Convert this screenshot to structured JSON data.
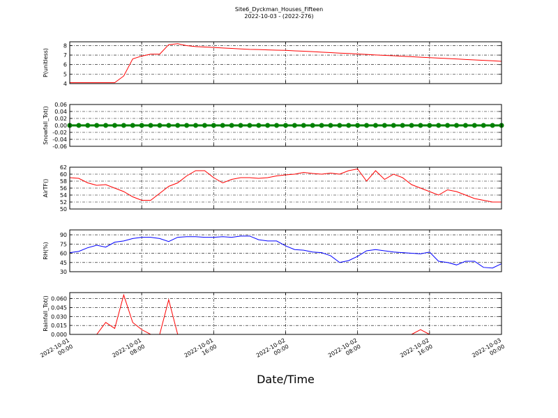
{
  "chart_data": [
    {
      "type": "line",
      "title": "Site6_Dyckman_Houses_Fifteen",
      "subtitle": "2022-10-03 - (2022-276)",
      "ylabel": "P(unitless)",
      "color": "#ff0000",
      "marker": false,
      "grid": true,
      "xlim": [
        "2022-10-01 00:00",
        "2022-10-03 00:00"
      ],
      "xticks": [
        "2022-10-01 00:00",
        "2022-10-01 08:00",
        "2022-10-01 16:00",
        "2022-10-02 00:00",
        "2022-10-02 08:00",
        "2022-10-02 16:00",
        "2022-10-03 00:00"
      ],
      "ylim": [
        4,
        8.4
      ],
      "yticks": [
        4,
        5,
        6,
        7,
        8
      ],
      "x": [
        "2022-10-01 00:00",
        "2022-10-01 01:00",
        "2022-10-01 02:00",
        "2022-10-01 03:00",
        "2022-10-01 04:00",
        "2022-10-01 05:00",
        "2022-10-01 06:00",
        "2022-10-01 07:00",
        "2022-10-01 08:00",
        "2022-10-01 09:00",
        "2022-10-01 10:00",
        "2022-10-01 11:00",
        "2022-10-01 12:00",
        "2022-10-01 13:00",
        "2022-10-01 14:00",
        "2022-10-01 15:00",
        "2022-10-01 16:00",
        "2022-10-01 17:00",
        "2022-10-01 18:00",
        "2022-10-01 19:00",
        "2022-10-01 20:00",
        "2022-10-01 21:00",
        "2022-10-01 22:00",
        "2022-10-01 23:00",
        "2022-10-02 00:00",
        "2022-10-02 01:00",
        "2022-10-02 02:00",
        "2022-10-02 03:00",
        "2022-10-02 04:00",
        "2022-10-02 05:00",
        "2022-10-02 06:00",
        "2022-10-02 07:00",
        "2022-10-02 08:00",
        "2022-10-02 09:00",
        "2022-10-02 10:00",
        "2022-10-02 11:00",
        "2022-10-02 12:00",
        "2022-10-02 13:00",
        "2022-10-02 14:00",
        "2022-10-02 15:00",
        "2022-10-02 16:00",
        "2022-10-02 17:00",
        "2022-10-02 18:00",
        "2022-10-02 19:00",
        "2022-10-02 20:00",
        "2022-10-02 21:00",
        "2022-10-02 22:00",
        "2022-10-02 23:00",
        "2022-10-03 00:00"
      ],
      "values": [
        4.1,
        4.1,
        4.1,
        4.1,
        4.1,
        4.1,
        4.8,
        6.6,
        6.9,
        7.1,
        7.1,
        8.1,
        8.2,
        8.0,
        7.9,
        7.85,
        7.8,
        7.75,
        7.7,
        7.65,
        7.6,
        7.58,
        7.55,
        7.52,
        7.5,
        7.45,
        7.41,
        7.36,
        7.31,
        7.26,
        7.21,
        7.17,
        7.12,
        7.07,
        7.02,
        6.97,
        6.93,
        6.88,
        6.83,
        6.78,
        6.73,
        6.69,
        6.64,
        6.59,
        6.54,
        6.49,
        6.45,
        6.4,
        6.35
      ]
    },
    {
      "type": "line",
      "ylabel": "Snowfall_Tot()",
      "color": "#008000",
      "marker": true,
      "grid": true,
      "xlim": [
        "2022-10-01 00:00",
        "2022-10-03 00:00"
      ],
      "xticks": [
        "2022-10-01 00:00",
        "2022-10-01 08:00",
        "2022-10-01 16:00",
        "2022-10-02 00:00",
        "2022-10-02 08:00",
        "2022-10-02 16:00",
        "2022-10-03 00:00"
      ],
      "ylim": [
        -0.06,
        0.06
      ],
      "yticks": [
        -0.06,
        -0.04,
        -0.02,
        {
          "value": 0,
          "label": "0.00"
        },
        0.02,
        0.04,
        0.06
      ],
      "x": [
        "2022-10-01 00:00",
        "2022-10-01 01:00",
        "2022-10-01 02:00",
        "2022-10-01 03:00",
        "2022-10-01 04:00",
        "2022-10-01 05:00",
        "2022-10-01 06:00",
        "2022-10-01 07:00",
        "2022-10-01 08:00",
        "2022-10-01 09:00",
        "2022-10-01 10:00",
        "2022-10-01 11:00",
        "2022-10-01 12:00",
        "2022-10-01 13:00",
        "2022-10-01 14:00",
        "2022-10-01 15:00",
        "2022-10-01 16:00",
        "2022-10-01 17:00",
        "2022-10-01 18:00",
        "2022-10-01 19:00",
        "2022-10-01 20:00",
        "2022-10-01 21:00",
        "2022-10-01 22:00",
        "2022-10-01 23:00",
        "2022-10-02 00:00",
        "2022-10-02 01:00",
        "2022-10-02 02:00",
        "2022-10-02 03:00",
        "2022-10-02 04:00",
        "2022-10-02 05:00",
        "2022-10-02 06:00",
        "2022-10-02 07:00",
        "2022-10-02 08:00",
        "2022-10-02 09:00",
        "2022-10-02 10:00",
        "2022-10-02 11:00",
        "2022-10-02 12:00",
        "2022-10-02 13:00",
        "2022-10-02 14:00",
        "2022-10-02 15:00",
        "2022-10-02 16:00",
        "2022-10-02 17:00",
        "2022-10-02 18:00",
        "2022-10-02 19:00",
        "2022-10-02 20:00",
        "2022-10-02 21:00",
        "2022-10-02 22:00",
        "2022-10-02 23:00",
        "2022-10-03 00:00"
      ],
      "values": [
        0,
        0,
        0,
        0,
        0,
        0,
        0,
        0,
        0,
        0,
        0,
        0,
        0,
        0,
        0,
        0,
        0,
        0,
        0,
        0,
        0,
        0,
        0,
        0,
        0,
        0,
        0,
        0,
        0,
        0,
        0,
        0,
        0,
        0,
        0,
        0,
        0,
        0,
        0,
        0,
        0,
        0,
        0,
        0,
        0,
        0,
        0,
        0,
        0
      ]
    },
    {
      "type": "line",
      "ylabel": "AirTF()",
      "color": "#ff0000",
      "marker": false,
      "grid": true,
      "xlim": [
        "2022-10-01 00:00",
        "2022-10-03 00:00"
      ],
      "xticks": [
        "2022-10-01 00:00",
        "2022-10-01 08:00",
        "2022-10-01 16:00",
        "2022-10-02 00:00",
        "2022-10-02 08:00",
        "2022-10-02 16:00",
        "2022-10-03 00:00"
      ],
      "ylim": [
        50,
        62
      ],
      "yticks": [
        50,
        52,
        54,
        56,
        58,
        60,
        62
      ],
      "x": [
        "2022-10-01 00:00",
        "2022-10-01 01:00",
        "2022-10-01 02:00",
        "2022-10-01 03:00",
        "2022-10-01 04:00",
        "2022-10-01 05:00",
        "2022-10-01 06:00",
        "2022-10-01 07:00",
        "2022-10-01 08:00",
        "2022-10-01 09:00",
        "2022-10-01 10:00",
        "2022-10-01 11:00",
        "2022-10-01 12:00",
        "2022-10-01 13:00",
        "2022-10-01 14:00",
        "2022-10-01 15:00",
        "2022-10-01 16:00",
        "2022-10-01 17:00",
        "2022-10-01 18:00",
        "2022-10-01 19:00",
        "2022-10-01 20:00",
        "2022-10-01 21:00",
        "2022-10-01 22:00",
        "2022-10-01 23:00",
        "2022-10-02 00:00",
        "2022-10-02 01:00",
        "2022-10-02 02:00",
        "2022-10-02 03:00",
        "2022-10-02 04:00",
        "2022-10-02 05:00",
        "2022-10-02 06:00",
        "2022-10-02 07:00",
        "2022-10-02 08:00",
        "2022-10-02 09:00",
        "2022-10-02 10:00",
        "2022-10-02 11:00",
        "2022-10-02 12:00",
        "2022-10-02 13:00",
        "2022-10-02 14:00",
        "2022-10-02 15:00",
        "2022-10-02 16:00",
        "2022-10-02 17:00",
        "2022-10-02 18:00",
        "2022-10-02 19:00",
        "2022-10-02 20:00",
        "2022-10-02 21:00",
        "2022-10-02 22:00",
        "2022-10-02 23:00",
        "2022-10-03 00:00"
      ],
      "values": [
        59,
        58.8,
        57.5,
        56.8,
        57,
        56,
        55,
        53.5,
        52.5,
        52.5,
        54.5,
        56.5,
        57.5,
        59.5,
        61,
        61,
        59,
        57.5,
        58.5,
        59,
        59,
        58.8,
        59,
        59.5,
        59.8,
        60,
        60.5,
        60.2,
        60,
        60.3,
        60,
        61,
        61.5,
        58,
        61,
        58.5,
        60,
        59,
        57,
        56,
        55,
        54,
        55.5,
        55,
        54,
        53,
        52.5,
        52,
        52
      ]
    },
    {
      "type": "line",
      "ylabel": "RH(%)",
      "color": "#0000ff",
      "marker": false,
      "grid": true,
      "xlim": [
        "2022-10-01 00:00",
        "2022-10-03 00:00"
      ],
      "xticks": [
        "2022-10-01 00:00",
        "2022-10-01 08:00",
        "2022-10-01 16:00",
        "2022-10-02 00:00",
        "2022-10-02 08:00",
        "2022-10-02 16:00",
        "2022-10-03 00:00"
      ],
      "ylim": [
        30,
        98
      ],
      "yticks": [
        30,
        45,
        60,
        75,
        90
      ],
      "x": [
        "2022-10-01 00:00",
        "2022-10-01 01:00",
        "2022-10-01 02:00",
        "2022-10-01 03:00",
        "2022-10-01 04:00",
        "2022-10-01 05:00",
        "2022-10-01 06:00",
        "2022-10-01 07:00",
        "2022-10-01 08:00",
        "2022-10-01 09:00",
        "2022-10-01 10:00",
        "2022-10-01 11:00",
        "2022-10-01 12:00",
        "2022-10-01 13:00",
        "2022-10-01 14:00",
        "2022-10-01 15:00",
        "2022-10-01 16:00",
        "2022-10-01 17:00",
        "2022-10-01 18:00",
        "2022-10-01 19:00",
        "2022-10-01 20:00",
        "2022-10-01 21:00",
        "2022-10-01 22:00",
        "2022-10-01 23:00",
        "2022-10-02 00:00",
        "2022-10-02 01:00",
        "2022-10-02 02:00",
        "2022-10-02 03:00",
        "2022-10-02 04:00",
        "2022-10-02 05:00",
        "2022-10-02 06:00",
        "2022-10-02 07:00",
        "2022-10-02 08:00",
        "2022-10-02 09:00",
        "2022-10-02 10:00",
        "2022-10-02 11:00",
        "2022-10-02 12:00",
        "2022-10-02 13:00",
        "2022-10-02 14:00",
        "2022-10-02 15:00",
        "2022-10-02 16:00",
        "2022-10-02 17:00",
        "2022-10-02 18:00",
        "2022-10-02 19:00",
        "2022-10-02 20:00",
        "2022-10-02 21:00",
        "2022-10-02 22:00",
        "2022-10-02 23:00",
        "2022-10-03 00:00"
      ],
      "values": [
        61,
        63,
        69,
        73,
        70,
        78,
        80,
        84,
        86,
        86,
        84,
        79,
        86,
        87,
        87,
        86,
        86,
        87,
        86,
        88,
        88,
        82,
        80,
        80,
        72,
        66,
        65,
        62,
        61,
        56,
        45,
        48,
        55,
        64,
        66,
        64,
        62,
        61,
        60,
        59,
        62,
        47,
        45,
        41,
        47,
        47,
        37,
        36,
        43
      ]
    },
    {
      "type": "line",
      "ylabel": "Rainfall_Tot()",
      "xlabel": "Date/Time",
      "color": "#ff0000",
      "marker": false,
      "grid": true,
      "xlim": [
        "2022-10-01 00:00",
        "2022-10-03 00:00"
      ],
      "xticks": [
        "2022-10-01 00:00",
        "2022-10-01 08:00",
        "2022-10-01 16:00",
        "2022-10-02 00:00",
        "2022-10-02 08:00",
        "2022-10-02 16:00",
        "2022-10-03 00:00"
      ],
      "ylim": [
        0,
        0.07
      ],
      "yticks": [
        {
          "value": 0,
          "label": "0.000"
        },
        0.015,
        {
          "value": 0.03,
          "label": "0.030"
        },
        0.045,
        {
          "value": 0.06,
          "label": "0.060"
        }
      ],
      "x": [
        "2022-10-01 00:00",
        "2022-10-01 01:00",
        "2022-10-01 02:00",
        "2022-10-01 03:00",
        "2022-10-01 04:00",
        "2022-10-01 05:00",
        "2022-10-01 06:00",
        "2022-10-01 07:00",
        "2022-10-01 08:00",
        "2022-10-01 09:00",
        "2022-10-01 10:00",
        "2022-10-01 11:00",
        "2022-10-01 12:00",
        "2022-10-01 13:00",
        "2022-10-01 14:00",
        "2022-10-01 15:00",
        "2022-10-01 16:00",
        "2022-10-01 17:00",
        "2022-10-01 18:00",
        "2022-10-01 19:00",
        "2022-10-01 20:00",
        "2022-10-01 21:00",
        "2022-10-01 22:00",
        "2022-10-01 23:00",
        "2022-10-02 00:00",
        "2022-10-02 01:00",
        "2022-10-02 02:00",
        "2022-10-02 03:00",
        "2022-10-02 04:00",
        "2022-10-02 05:00",
        "2022-10-02 06:00",
        "2022-10-02 07:00",
        "2022-10-02 08:00",
        "2022-10-02 09:00",
        "2022-10-02 10:00",
        "2022-10-02 11:00",
        "2022-10-02 12:00",
        "2022-10-02 13:00",
        "2022-10-02 14:00",
        "2022-10-02 15:00",
        "2022-10-02 16:00",
        "2022-10-02 17:00",
        "2022-10-02 18:00",
        "2022-10-02 19:00",
        "2022-10-02 20:00",
        "2022-10-02 21:00",
        "2022-10-02 22:00",
        "2022-10-02 23:00",
        "2022-10-03 00:00"
      ],
      "values": [
        0,
        0,
        0,
        0,
        0.02,
        0.01,
        0.066,
        0.02,
        0.008,
        0,
        0,
        0.058,
        0,
        0,
        0,
        0,
        0,
        0,
        0,
        0,
        0,
        0,
        0,
        0,
        0,
        0,
        0,
        0,
        0,
        0,
        0,
        0,
        0,
        0,
        0,
        0,
        0,
        0,
        0,
        0.008,
        0,
        0,
        0,
        0,
        0,
        0,
        0,
        0,
        0
      ]
    }
  ]
}
